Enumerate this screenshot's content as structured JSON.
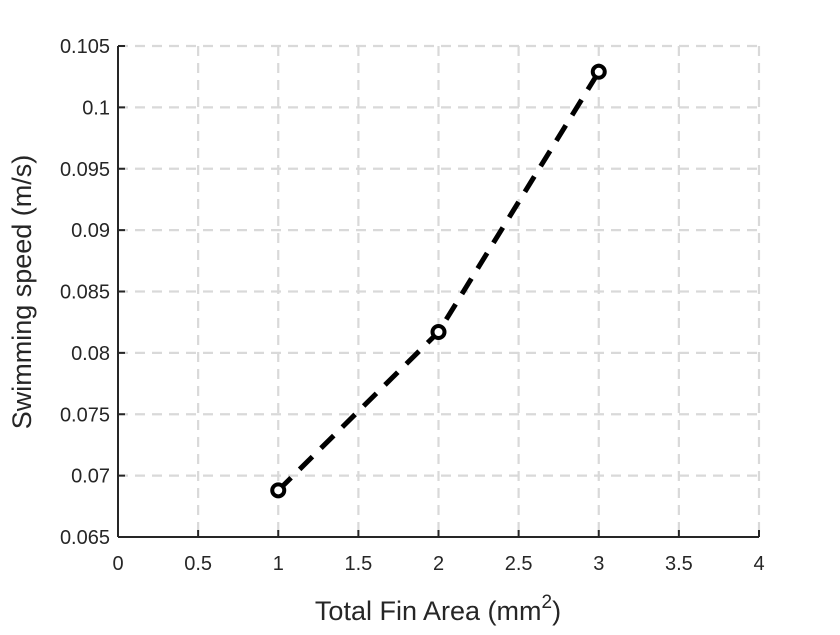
{
  "chart_data": {
    "type": "line",
    "xlabel": "Total Fin Area (mm",
    "xlabel_superscript": "2",
    "xlabel_suffix": ")",
    "ylabel": "Swimming speed (m/s)",
    "xlim": [
      0,
      4
    ],
    "ylim": [
      0.065,
      0.105
    ],
    "x_ticks": [
      "0",
      "0.5",
      "1",
      "1.5",
      "2",
      "2.5",
      "3",
      "3.5",
      "4"
    ],
    "y_ticks": [
      "0.065",
      "0.07",
      "0.075",
      "0.08",
      "0.085",
      "0.09",
      "0.095",
      "0.1",
      "0.105"
    ],
    "grid": true,
    "line_style": "dashed",
    "marker": "circle",
    "series": [
      {
        "x": [
          1,
          2,
          3
        ],
        "y": [
          0.0688,
          0.0817,
          0.1029
        ],
        "color": "#000000"
      }
    ]
  }
}
